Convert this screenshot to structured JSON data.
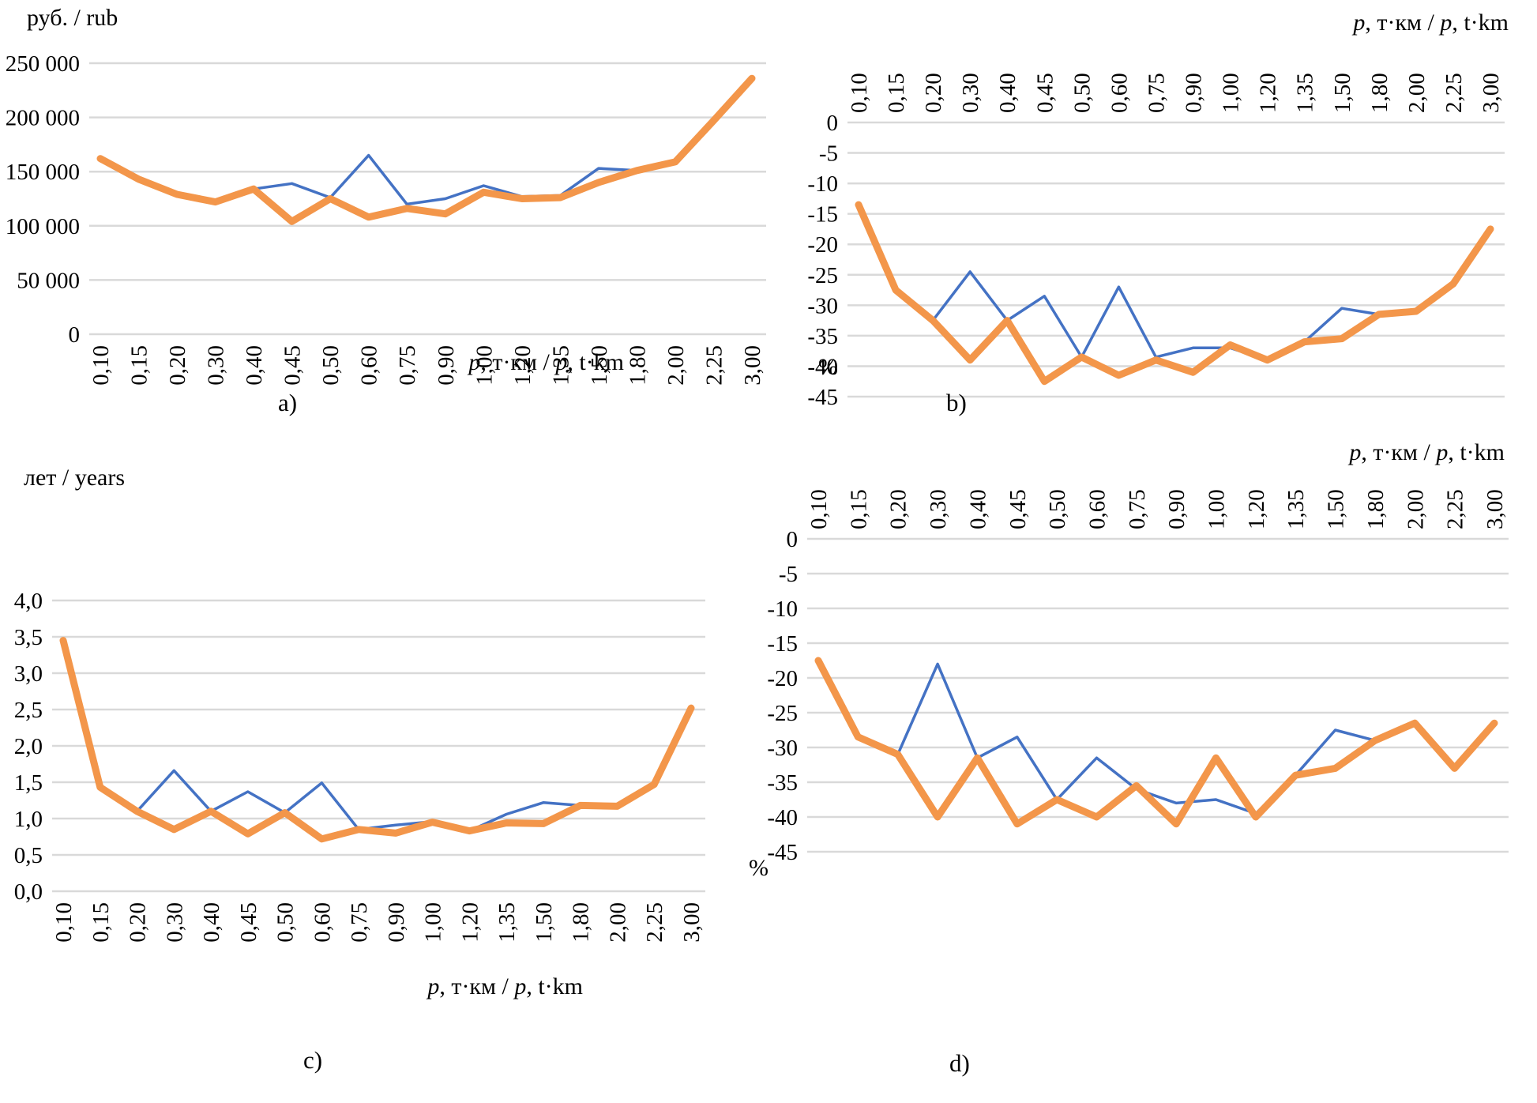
{
  "page": {
    "background": "#ffffff"
  },
  "chart_data": [
    {
      "id": "a",
      "type": "line",
      "caption": "a)",
      "ylabel": "руб. / rub",
      "xlabel": "p, т·км / p, t·km",
      "x_labels_position": "bottom",
      "grid": "horizontal",
      "legend": "none",
      "ylim": [
        0,
        250000
      ],
      "yticks": [
        {
          "v": 250000,
          "label": "250 000"
        },
        {
          "v": 200000,
          "label": "200 000"
        },
        {
          "v": 150000,
          "label": "150 000"
        },
        {
          "v": 100000,
          "label": "100 000"
        },
        {
          "v": 50000,
          "label": "50 000"
        },
        {
          "v": 0,
          "label": "0"
        }
      ],
      "categories": [
        "0,10",
        "0,15",
        "0,20",
        "0,30",
        "0,40",
        "0,45",
        "0,50",
        "0,60",
        "0,75",
        "0,90",
        "1,00",
        "1,20",
        "1,35",
        "1,50",
        "1,80",
        "2,00",
        "2,25",
        "3,00"
      ],
      "series": [
        {
          "name": "blue-line",
          "color": "#4472C4",
          "stroke_width": 3.5,
          "values": [
            162000,
            143000,
            129000,
            122000,
            134000,
            139000,
            126000,
            165000,
            120000,
            125000,
            137000,
            127000,
            128000,
            153000,
            151000,
            159000,
            197000,
            236000
          ]
        },
        {
          "name": "orange-line",
          "color": "#F3964A",
          "stroke_width": 9,
          "values": [
            162000,
            143000,
            129000,
            122000,
            134000,
            104000,
            125000,
            108000,
            116000,
            111000,
            131000,
            125000,
            126000,
            140000,
            151000,
            159000,
            197000,
            236000
          ]
        }
      ]
    },
    {
      "id": "b",
      "type": "line",
      "caption": "b)",
      "ylabel": "",
      "unit_label": "%",
      "xlabel": "p, т·км / p, t·km",
      "x_labels_position": "top",
      "grid": "horizontal",
      "legend": "none",
      "ylim": [
        -45,
        0
      ],
      "yticks": [
        {
          "v": 0,
          "label": "0"
        },
        {
          "v": -5,
          "label": "-5"
        },
        {
          "v": -10,
          "label": "-10"
        },
        {
          "v": -15,
          "label": "-15"
        },
        {
          "v": -20,
          "label": "-20"
        },
        {
          "v": -25,
          "label": "-25"
        },
        {
          "v": -30,
          "label": "-30"
        },
        {
          "v": -35,
          "label": "-35"
        },
        {
          "v": -40,
          "label": "-40"
        },
        {
          "v": -45,
          "label": "-45"
        }
      ],
      "categories": [
        "0,10",
        "0,15",
        "0,20",
        "0,30",
        "0,40",
        "0,45",
        "0,50",
        "0,60",
        "0,75",
        "0,90",
        "1,00",
        "1,20",
        "1,35",
        "1,50",
        "1,80",
        "2,00",
        "2,25",
        "3,00"
      ],
      "series": [
        {
          "name": "blue-line",
          "color": "#4472C4",
          "stroke_width": 3.5,
          "values": [
            -13.5,
            -27.5,
            -32.5,
            -24.5,
            -32.5,
            -28.5,
            -38.5,
            -27,
            -38.5,
            -37,
            -37,
            -39,
            -36,
            -30.5,
            -31.5,
            -31,
            -26.5,
            -17.5
          ]
        },
        {
          "name": "orange-line",
          "color": "#F3964A",
          "stroke_width": 9,
          "values": [
            -13.5,
            -27.5,
            -32.5,
            -39,
            -32.5,
            -42.5,
            -38.5,
            -41.5,
            -39,
            -41,
            -36.5,
            -39,
            -36,
            -35.5,
            -31.5,
            -31,
            -26.5,
            -17.5
          ]
        }
      ]
    },
    {
      "id": "c",
      "type": "line",
      "caption": "c)",
      "ylabel": "лет / years",
      "xlabel": "p, т·км / p, t·km",
      "x_labels_position": "bottom",
      "grid": "horizontal",
      "legend": "none",
      "ylim": [
        0,
        4
      ],
      "yticks": [
        {
          "v": 4.0,
          "label": "4,0"
        },
        {
          "v": 3.5,
          "label": "3,5"
        },
        {
          "v": 3.0,
          "label": "3,0"
        },
        {
          "v": 2.5,
          "label": "2,5"
        },
        {
          "v": 2.0,
          "label": "2,0"
        },
        {
          "v": 1.5,
          "label": "1,5"
        },
        {
          "v": 1.0,
          "label": "1,0"
        },
        {
          "v": 0.5,
          "label": "0,5"
        },
        {
          "v": 0.0,
          "label": "0,0"
        }
      ],
      "categories": [
        "0,10",
        "0,15",
        "0,20",
        "0,30",
        "0,40",
        "0,45",
        "0,50",
        "0,60",
        "0,75",
        "0,90",
        "1,00",
        "1,20",
        "1,35",
        "1,50",
        "1,80",
        "2,00",
        "2,25",
        "3,00"
      ],
      "series": [
        {
          "name": "blue-line",
          "color": "#4472C4",
          "stroke_width": 3.5,
          "values": [
            3.45,
            1.43,
            1.1,
            1.66,
            1.1,
            1.37,
            1.08,
            1.49,
            0.85,
            0.91,
            0.96,
            0.83,
            1.06,
            1.22,
            1.18,
            1.17,
            1.47,
            2.52
          ]
        },
        {
          "name": "orange-line",
          "color": "#F3964A",
          "stroke_width": 9,
          "values": [
            3.45,
            1.43,
            1.1,
            0.85,
            1.1,
            0.79,
            1.08,
            0.72,
            0.85,
            0.8,
            0.95,
            0.83,
            0.94,
            0.93,
            1.18,
            1.17,
            1.47,
            2.52
          ]
        }
      ]
    },
    {
      "id": "d",
      "type": "line",
      "caption": "d)",
      "ylabel": "",
      "unit_label": "%",
      "xlabel": "p, т·км / p, t·km",
      "x_labels_position": "top",
      "grid": "horizontal",
      "legend": "none",
      "ylim": [
        -45,
        0
      ],
      "yticks": [
        {
          "v": 0,
          "label": "0"
        },
        {
          "v": -5,
          "label": "-5"
        },
        {
          "v": -10,
          "label": "-10"
        },
        {
          "v": -15,
          "label": "-15"
        },
        {
          "v": -20,
          "label": "-20"
        },
        {
          "v": -25,
          "label": "-25"
        },
        {
          "v": -30,
          "label": "-30"
        },
        {
          "v": -35,
          "label": "-35"
        },
        {
          "v": -40,
          "label": "-40"
        },
        {
          "v": -45,
          "label": "-45"
        }
      ],
      "categories": [
        "0,10",
        "0,15",
        "0,20",
        "0,30",
        "0,40",
        "0,45",
        "0,50",
        "0,60",
        "0,75",
        "0,90",
        "1,00",
        "1,20",
        "1,35",
        "1,50",
        "1,80",
        "2,00",
        "2,25",
        "3,00"
      ],
      "series": [
        {
          "name": "blue-line",
          "color": "#4472C4",
          "stroke_width": 3.5,
          "values": [
            -17.5,
            -28.5,
            -31,
            -18,
            -31.5,
            -28.5,
            -37.5,
            -31.5,
            -36,
            -38,
            -37.5,
            -39.5,
            -34,
            -27.5,
            -29,
            -26.5,
            -33,
            -26.5
          ]
        },
        {
          "name": "orange-line",
          "color": "#F3964A",
          "stroke_width": 9,
          "values": [
            -17.5,
            -28.5,
            -31,
            -40,
            -31.5,
            -41,
            -37.5,
            -40,
            -35.5,
            -41,
            -31.5,
            -40,
            -34,
            -33,
            -29,
            -26.5,
            -33,
            -26.5
          ]
        }
      ]
    }
  ],
  "style": {
    "gridline_color": "#D9D9D9"
  }
}
